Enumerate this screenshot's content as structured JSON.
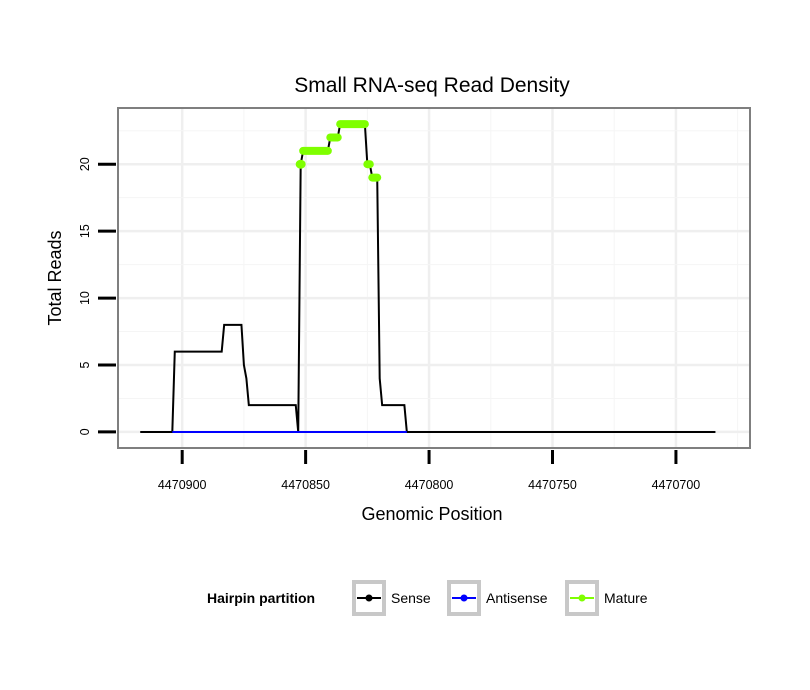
{
  "chart_data": {
    "type": "line",
    "title": "Small RNA-seq Read Density",
    "xlabel": "Genomic Position",
    "ylabel": "Total Reads",
    "x_reversed": true,
    "xlim": [
      4470926,
      4470670
    ],
    "ylim": [
      -1.2,
      24.2
    ],
    "x_ticks": [
      4470900,
      4470850,
      4470800,
      4470750,
      4470700
    ],
    "x_tick_labels": [
      "4470900",
      "4470850",
      "4470800",
      "4470750",
      "4470700"
    ],
    "y_ticks": [
      0,
      5,
      10,
      15,
      20
    ],
    "y_tick_labels": [
      "0",
      "5",
      "10",
      "15",
      "20"
    ],
    "grid": true,
    "legend": {
      "title": "Hairpin partition",
      "position": "bottom",
      "entries": [
        {
          "label": "Sense",
          "color": "#000000"
        },
        {
          "label": "Antisense",
          "color": "#0000ff"
        },
        {
          "label": "Mature",
          "color": "#7fff00"
        }
      ]
    },
    "series": [
      {
        "name": "Sense",
        "color": "#000000",
        "points": [
          [
            4470917,
            0
          ],
          [
            4470904,
            0
          ],
          [
            4470903,
            6
          ],
          [
            4470884,
            6
          ],
          [
            4470883,
            8
          ],
          [
            4470876,
            8
          ],
          [
            4470875,
            5
          ],
          [
            4470874,
            4
          ],
          [
            4470873,
            2
          ],
          [
            4470854,
            2
          ],
          [
            4470853,
            0
          ],
          [
            4470852,
            20
          ],
          [
            4470851,
            21
          ],
          [
            4470841,
            21
          ],
          [
            4470840,
            22
          ],
          [
            4470837,
            22
          ],
          [
            4470836,
            23
          ],
          [
            4470826,
            23
          ],
          [
            4470825,
            20
          ],
          [
            4470824,
            20
          ],
          [
            4470823,
            19
          ],
          [
            4470821,
            19
          ],
          [
            4470820,
            4
          ],
          [
            4470819,
            2
          ],
          [
            4470810,
            2
          ],
          [
            4470809,
            0
          ],
          [
            4470684,
            0
          ]
        ]
      },
      {
        "name": "Antisense",
        "color": "#0000ff",
        "points": [
          [
            4470904,
            0
          ],
          [
            4470809,
            0
          ]
        ]
      },
      {
        "name": "Mature",
        "color": "#7fff00",
        "segments": [
          {
            "x": [
              4470852,
              4470852
            ],
            "y": 20
          },
          {
            "x": [
              4470851,
              4470841
            ],
            "y": 21
          },
          {
            "x": [
              4470840,
              4470837
            ],
            "y": 22
          },
          {
            "x": [
              4470836,
              4470826
            ],
            "y": 23
          },
          {
            "x": [
              4470825,
              4470824
            ],
            "y": 20
          },
          {
            "x": [
              4470823,
              4470821
            ],
            "y": 19
          }
        ]
      }
    ]
  }
}
